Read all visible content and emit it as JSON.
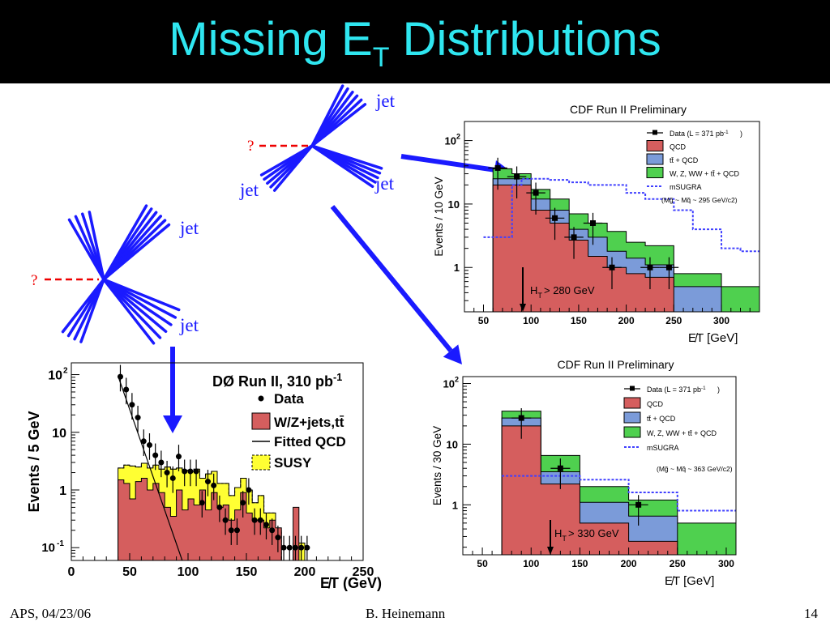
{
  "slide": {
    "title_pre": "Missing E",
    "title_sub": "T",
    "title_post": " Distributions",
    "footer_left": "APS, 04/23/06",
    "footer_center": "B. Heinemann",
    "footer_right": "14"
  },
  "diagram": {
    "jet_label": "jet",
    "unknown_label": "?"
  },
  "chart_data": [
    {
      "type": "bar",
      "title": "DØ Run II, 310 pb-1",
      "xlabel": "E̸T (GeV)",
      "ylabel": "Events / 5 GeV",
      "xlim": [
        0,
        250
      ],
      "ylim": [
        0.06,
        160
      ],
      "yscale": "log",
      "xticks": [
        "0",
        "50",
        "100",
        "150",
        "200",
        "250"
      ],
      "yticks": [
        "10^-1",
        "1",
        "10",
        "10^2"
      ],
      "legend": [
        "Data",
        "W/Z+jets,tt̄",
        "Fitted QCD",
        "SUSY"
      ],
      "colors": {
        "background": "#d55e5e",
        "susy": "#ffff33",
        "fit": "#000000",
        "data": "#000000"
      },
      "series": [
        {
          "name": "W/Z+jets,tt̄",
          "bin_width": 5,
          "x": [
            40,
            45,
            50,
            55,
            60,
            65,
            70,
            75,
            80,
            85,
            90,
            95,
            100,
            105,
            110,
            115,
            120,
            125,
            130,
            135,
            140,
            145,
            150,
            155,
            160,
            165,
            170,
            175,
            180,
            185,
            190,
            195,
            200
          ],
          "values": [
            1.5,
            1.3,
            0.7,
            1.4,
            1.6,
            1.0,
            1.3,
            0.9,
            0.5,
            0.35,
            1.0,
            0.45,
            0.7,
            0.55,
            1.0,
            0.45,
            0.9,
            0.5,
            0.55,
            0.3,
            0.45,
            0.9,
            0.4,
            0.3,
            0.3,
            0.22,
            0.3,
            0.22,
            0.0,
            0.0,
            0.5,
            0.0,
            0.0
          ]
        },
        {
          "name": "SUSY",
          "bin_width": 5,
          "x": [
            40,
            45,
            50,
            55,
            60,
            65,
            70,
            75,
            80,
            85,
            90,
            95,
            100,
            105,
            110,
            115,
            120,
            125,
            130,
            135,
            140,
            145,
            150,
            155,
            160,
            165,
            170,
            175,
            180,
            185,
            190,
            195,
            200
          ],
          "values": [
            2.4,
            2.7,
            2.6,
            2.5,
            2.9,
            2.4,
            2.7,
            2.3,
            2.5,
            2.3,
            2.4,
            2.2,
            2.1,
            2.3,
            1.6,
            1.9,
            2.1,
            1.3,
            1.3,
            0.8,
            1.1,
            1.6,
            1.0,
            0.6,
            0.8,
            0.4,
            0.4,
            0.2,
            0.0,
            0.0,
            0.12,
            0.12,
            0.0
          ]
        },
        {
          "name": "Data",
          "x": [
            42,
            47,
            52,
            57,
            62,
            67,
            72,
            77,
            82,
            87,
            92,
            97,
            102,
            107,
            112,
            117,
            122,
            127,
            132,
            137,
            142,
            147,
            152,
            157,
            162,
            167,
            172,
            177,
            182,
            187,
            192,
            197,
            202
          ],
          "values": [
            92,
            55,
            30,
            18,
            7,
            6,
            4,
            3,
            2,
            1.6,
            3.8,
            2.1,
            2.1,
            2.1,
            0.6,
            1.4,
            1.2,
            0.5,
            0.3,
            0.2,
            0.2,
            0.6,
            1.0,
            0.3,
            0.3,
            0.25,
            0.2,
            0.15,
            0.1,
            0.1,
            0.1,
            0.1,
            0.1
          ]
        },
        {
          "name": "Fitted QCD",
          "x": [
            40,
            95
          ],
          "values": [
            95,
            0.06
          ]
        }
      ]
    },
    {
      "type": "bar",
      "title": "CDF Run II Preliminary",
      "xlabel": "E̸T [GeV]",
      "ylabel": "Events / 10 GeV",
      "xlim": [
        30,
        340
      ],
      "ylim": [
        0.2,
        200
      ],
      "yscale": "log",
      "xticks": [
        "50",
        "100",
        "150",
        "200",
        "250",
        "300"
      ],
      "yticks": [
        "1",
        "10",
        "10²"
      ],
      "legend": [
        "Data   (L = 371 pb-1)",
        "QCD",
        "tt̄ + QCD",
        "W, Z, WW + tt̄ + QCD",
        "mSUGRA",
        "(Mg̃ ~ Mq̃ ~ 295 GeV/c2)"
      ],
      "annotation": "HT > 280 GeV",
      "bin_edges": [
        50,
        60,
        70,
        80,
        90,
        100,
        110,
        120,
        130,
        140,
        150,
        160,
        170,
        180,
        190,
        200,
        210,
        220,
        230,
        250,
        270,
        300,
        320,
        340
      ],
      "series": [
        {
          "name": "QCD",
          "values": [
            0.0,
            20,
            20,
            20,
            20,
            8,
            8,
            5,
            5,
            2.7,
            2.7,
            1.5,
            1.5,
            1.0,
            1.0,
            0.8,
            0.8,
            0.7,
            0.7,
            0.0,
            0.0,
            0.0,
            0.0
          ]
        },
        {
          "name": "tt̄ + QCD",
          "values": [
            0.0,
            25,
            25,
            25,
            25,
            12,
            12,
            8,
            8,
            4,
            4,
            3,
            3,
            1.8,
            1.8,
            1.4,
            1.4,
            1.1,
            1.1,
            0.5,
            0.5,
            0.0,
            0.0
          ]
        },
        {
          "name": "W, Z, WW + tt̄ + QCD",
          "values": [
            0.0,
            36,
            36,
            30,
            30,
            17,
            17,
            12,
            12,
            7,
            7,
            5,
            5,
            3.7,
            3.7,
            2.5,
            2.5,
            2.2,
            2.2,
            0.8,
            0.8,
            0.5,
            0.5
          ]
        },
        {
          "name": "mSUGRA",
          "values": [
            3,
            3,
            3,
            20,
            25,
            25,
            25,
            24,
            24,
            22,
            22,
            20,
            20,
            20,
            20,
            15,
            15,
            12,
            12,
            8,
            4,
            2,
            1.8
          ]
        },
        {
          "name": "Data",
          "x": [
            65,
            85,
            105,
            125,
            145,
            165,
            185,
            225,
            245
          ],
          "values": [
            37,
            27,
            15,
            6,
            3,
            5,
            1,
            1,
            1
          ]
        }
      ]
    },
    {
      "type": "bar",
      "title": "CDF Run II Preliminary",
      "xlabel": "E̸T [GeV]",
      "ylabel": "Events / 30 GeV",
      "xlim": [
        30,
        310
      ],
      "ylim": [
        0.15,
        130
      ],
      "yscale": "log",
      "xticks": [
        "50",
        "100",
        "150",
        "200",
        "250",
        "300"
      ],
      "yticks": [
        "1",
        "10",
        "10²"
      ],
      "legend": [
        "Data  (L = 371 pb-1)",
        "QCD",
        "tt̄ + QCD",
        "W, Z, WW + tt̄ + QCD",
        "mSUGRA",
        "(Mg̃ ~ Mq̃ ~ 363 GeV/c2)"
      ],
      "annotation": "HT > 330 GeV",
      "bin_edges": [
        70,
        110,
        150,
        200,
        250,
        310
      ],
      "series": [
        {
          "name": "QCD",
          "values": [
            20,
            2.2,
            0.5,
            0.25,
            0.0
          ]
        },
        {
          "name": "tt̄ + QCD",
          "values": [
            27,
            3.5,
            1.1,
            0.65,
            0.0
          ]
        },
        {
          "name": "W, Z, WW + tt̄ + QCD",
          "values": [
            35,
            6.5,
            2.0,
            1.2,
            0.5
          ]
        },
        {
          "name": "mSUGRA",
          "values": [
            3,
            3,
            2.6,
            1.6,
            0.8
          ]
        },
        {
          "name": "Data",
          "x": [
            90,
            130,
            210
          ],
          "values": [
            27,
            4,
            1
          ]
        }
      ]
    }
  ]
}
